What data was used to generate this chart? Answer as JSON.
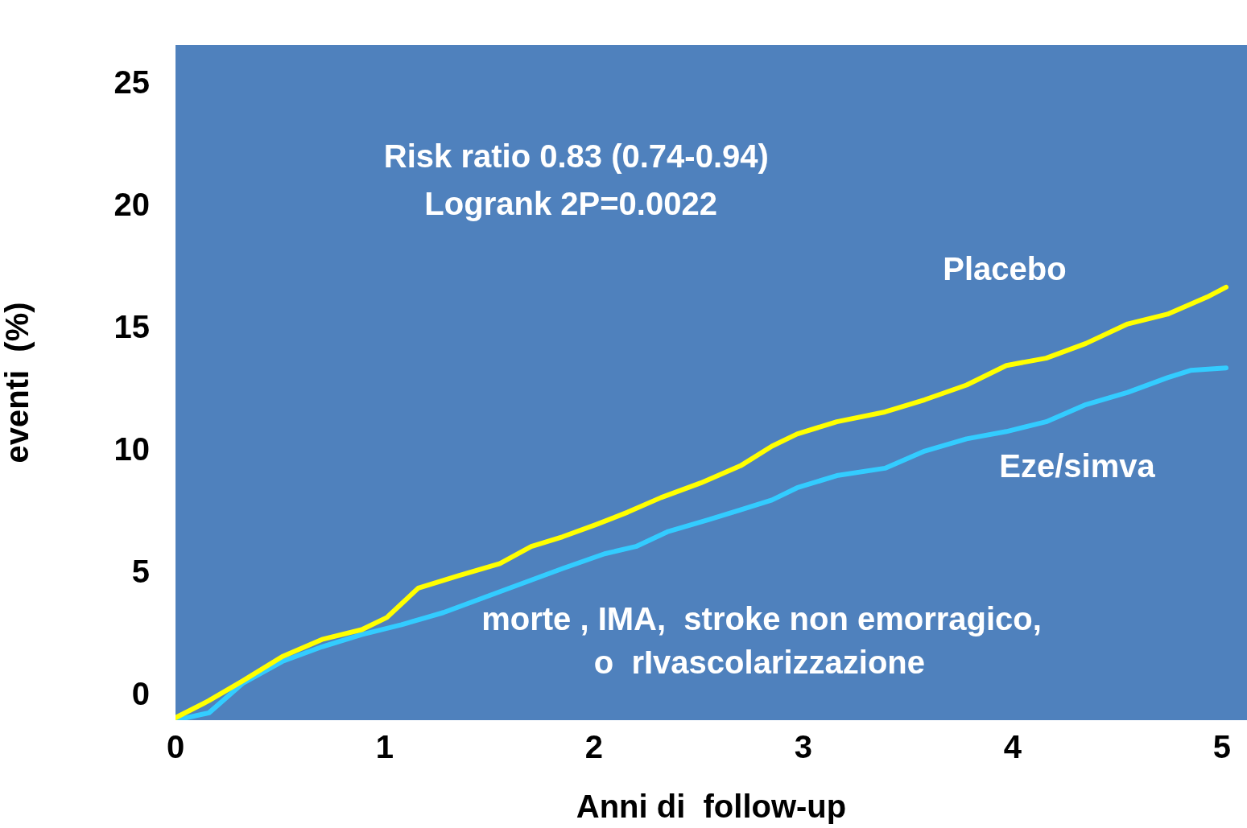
{
  "chart_data": {
    "type": "line",
    "xlabel": "Anni di  follow-up",
    "ylabel": "eventi  (%)",
    "xlim": [
      0,
      5.12
    ],
    "xticks": [
      0,
      1,
      2,
      3,
      4,
      5
    ],
    "ylim": [
      -1,
      26.6
    ],
    "yticks": [
      0,
      5,
      10,
      15,
      20,
      25
    ],
    "grid": false,
    "legend": false,
    "marker": "none",
    "line_style": "solid",
    "annotations": [
      "Risk ratio 0.83 (0.74-0.94)",
      "Logrank 2P=0.0022",
      "morte , IMA,  stroke non emorragico,",
      "o  rIvascolarizzazione"
    ],
    "series": [
      {
        "name": "Placebo",
        "color": "#ffff00",
        "x": [
          0,
          0.16,
          0.32,
          0.51,
          0.7,
          0.89,
          1.01,
          1.16,
          1.35,
          1.55,
          1.7,
          1.85,
          2.01,
          2.16,
          2.32,
          2.51,
          2.7,
          2.85,
          2.97,
          3.16,
          3.39,
          3.58,
          3.78,
          3.97,
          4.16,
          4.35,
          4.55,
          4.74,
          4.93,
          5.02
        ],
        "values": [
          -0.9,
          -0.2,
          0.6,
          1.6,
          2.3,
          2.7,
          3.2,
          4.4,
          4.9,
          5.4,
          6.1,
          6.5,
          7.0,
          7.5,
          8.1,
          8.7,
          9.4,
          10.2,
          10.7,
          11.2,
          11.6,
          12.1,
          12.7,
          13.5,
          13.8,
          14.4,
          15.2,
          15.6,
          16.3,
          16.7
        ]
      },
      {
        "name": "Eze/simva",
        "color": "#33ccff",
        "x": [
          0,
          0.16,
          0.32,
          0.51,
          0.7,
          0.89,
          1.08,
          1.28,
          1.47,
          1.66,
          1.85,
          2.05,
          2.2,
          2.35,
          2.55,
          2.7,
          2.85,
          2.97,
          3.16,
          3.39,
          3.58,
          3.78,
          3.97,
          4.16,
          4.35,
          4.55,
          4.74,
          4.85,
          5.02
        ],
        "values": [
          -1.0,
          -0.7,
          0.5,
          1.4,
          2.0,
          2.5,
          2.9,
          3.4,
          4.0,
          4.6,
          5.2,
          5.8,
          6.1,
          6.7,
          7.2,
          7.6,
          8.0,
          8.5,
          9.0,
          9.3,
          10.0,
          10.5,
          10.8,
          11.2,
          11.9,
          12.4,
          13.0,
          13.3,
          13.4
        ]
      }
    ]
  }
}
